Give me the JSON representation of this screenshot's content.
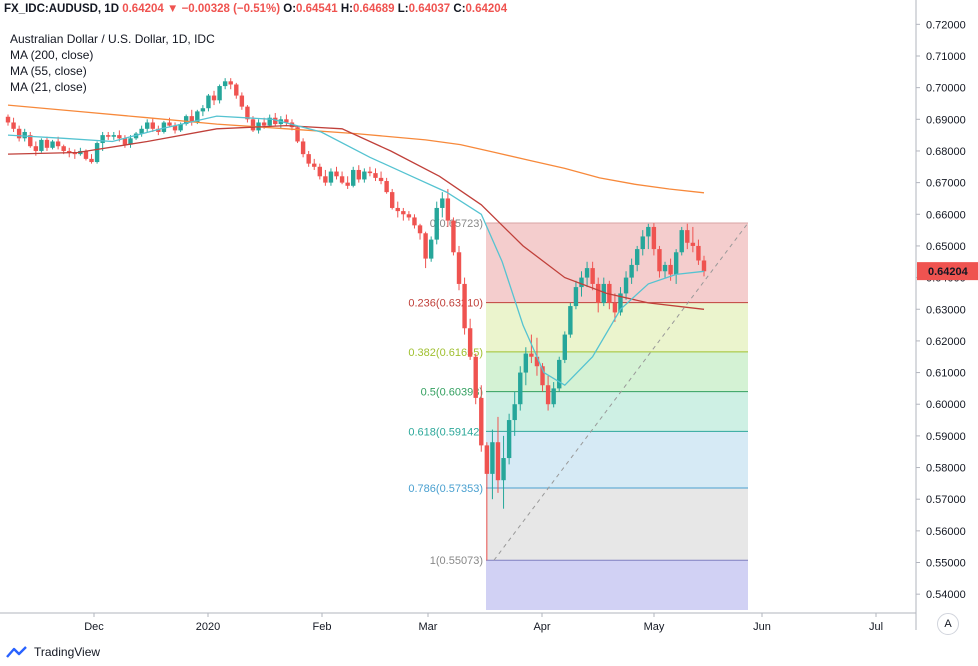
{
  "header": {
    "symbol": "FX_IDC:AUDUSD, 1D",
    "last": "0.64204",
    "arrow": "▼",
    "change": "−0.00328 (−0.51%)",
    "o_label": "O:",
    "o_value": "0.64541",
    "h_label": "H:",
    "h_value": "0.64689",
    "l_label": "L:",
    "l_value": "0.64037",
    "c_label": "C:",
    "c_value": "0.64204"
  },
  "legend": {
    "title": "Australian Dollar / U.S. Dollar, 1D, IDC",
    "ma200": "MA (200, close)",
    "ma55": "MA (55, close)",
    "ma21": "MA (21, close)"
  },
  "footer": {
    "brand": "TradingView",
    "auto_button": "A"
  },
  "colors": {
    "up": "#26a69a",
    "down": "#ef5350",
    "ma200": "#f7893b",
    "ma55": "#c0403a",
    "ma21": "#55c3d1",
    "price_label_bg": "#ef5350"
  },
  "chart_data": {
    "type": "candlestick",
    "ylim": [
      0.535,
      0.722
    ],
    "y_ticks": [
      "0.72000",
      "0.71000",
      "0.70000",
      "0.69000",
      "0.68000",
      "0.67000",
      "0.66000",
      "0.65000",
      "0.64000",
      "0.63000",
      "0.62000",
      "0.61000",
      "0.60000",
      "0.59000",
      "0.58000",
      "0.57000",
      "0.56000",
      "0.55000",
      "0.54000"
    ],
    "x_ticks": [
      "Dec",
      "2020",
      "Feb",
      "Mar",
      "Apr",
      "May",
      "Jun",
      "Jul"
    ],
    "last_price_label": "0.64204",
    "last_price": 0.64204,
    "fibonacci": {
      "levels": [
        {
          "label": "0(0.65723)",
          "value": 0.65723,
          "fill": "#f2c4c4",
          "line": "#d9a3a3",
          "color": "#888888"
        },
        {
          "label": "0.236(0.63210)",
          "value": 0.6321,
          "fill": "#e8f2c4",
          "line": "#c0403a",
          "color": "#c0403a"
        },
        {
          "label": "0.382(0.61655)",
          "value": 0.61655,
          "fill": "#ccf0cc",
          "line": "#a0c030",
          "color": "#a0c030"
        },
        {
          "label": "0.5(0.60398)",
          "value": 0.60398,
          "fill": "#c5eddf",
          "line": "#33a060",
          "color": "#33a060"
        },
        {
          "label": "0.618(0.59142)",
          "value": 0.59142,
          "fill": "#cfe6f3",
          "line": "#2ca89a",
          "color": "#2ca89a"
        },
        {
          "label": "0.786(0.57353)",
          "value": 0.57353,
          "fill": "#e3e3e3",
          "line": "#4aa0d0",
          "color": "#4aa0d0"
        },
        {
          "label": "1(0.55073)",
          "value": 0.55073,
          "fill": "#c9c9f2",
          "line": "#8080c0",
          "color": "#888888"
        }
      ]
    },
    "candles": [
      [
        0.6908,
        0.6915,
        0.688,
        0.689
      ],
      [
        0.689,
        0.6905,
        0.686,
        0.687
      ],
      [
        0.687,
        0.688,
        0.683,
        0.684
      ],
      [
        0.684,
        0.687,
        0.683,
        0.686
      ],
      [
        0.685,
        0.686,
        0.681,
        0.6815
      ],
      [
        0.6815,
        0.683,
        0.6785,
        0.68
      ],
      [
        0.68,
        0.684,
        0.6795,
        0.6835
      ],
      [
        0.6835,
        0.6845,
        0.68,
        0.681
      ],
      [
        0.681,
        0.6835,
        0.6805,
        0.683
      ],
      [
        0.683,
        0.6845,
        0.6805,
        0.6815
      ],
      [
        0.6815,
        0.682,
        0.679,
        0.68
      ],
      [
        0.68,
        0.681,
        0.678,
        0.6795
      ],
      [
        0.6795,
        0.6805,
        0.6775,
        0.679
      ],
      [
        0.679,
        0.681,
        0.6785,
        0.68
      ],
      [
        0.68,
        0.6805,
        0.677,
        0.6775
      ],
      [
        0.6775,
        0.679,
        0.676,
        0.6765
      ],
      [
        0.6765,
        0.683,
        0.676,
        0.6825
      ],
      [
        0.6825,
        0.686,
        0.68,
        0.685
      ],
      [
        0.685,
        0.686,
        0.6835,
        0.6845
      ],
      [
        0.6845,
        0.686,
        0.6835,
        0.685
      ],
      [
        0.685,
        0.6865,
        0.683,
        0.684
      ],
      [
        0.684,
        0.685,
        0.681,
        0.682
      ],
      [
        0.682,
        0.685,
        0.681,
        0.684
      ],
      [
        0.684,
        0.686,
        0.6835,
        0.6855
      ],
      [
        0.6855,
        0.688,
        0.6845,
        0.687
      ],
      [
        0.687,
        0.69,
        0.686,
        0.689
      ],
      [
        0.689,
        0.6905,
        0.686,
        0.687
      ],
      [
        0.687,
        0.688,
        0.685,
        0.686
      ],
      [
        0.686,
        0.6895,
        0.6855,
        0.689
      ],
      [
        0.689,
        0.6905,
        0.6875,
        0.688
      ],
      [
        0.688,
        0.689,
        0.6855,
        0.6865
      ],
      [
        0.6865,
        0.689,
        0.686,
        0.6885
      ],
      [
        0.6885,
        0.6915,
        0.688,
        0.691
      ],
      [
        0.691,
        0.693,
        0.688,
        0.689
      ],
      [
        0.689,
        0.693,
        0.6885,
        0.6925
      ],
      [
        0.6925,
        0.6945,
        0.691,
        0.6935
      ],
      [
        0.6935,
        0.698,
        0.6925,
        0.6975
      ],
      [
        0.6975,
        0.699,
        0.6945,
        0.696
      ],
      [
        0.696,
        0.701,
        0.695,
        0.7005
      ],
      [
        0.7005,
        0.703,
        0.6995,
        0.702
      ],
      [
        0.702,
        0.703,
        0.6995,
        0.701
      ],
      [
        0.701,
        0.7015,
        0.6965,
        0.6975
      ],
      [
        0.6975,
        0.6985,
        0.693,
        0.694
      ],
      [
        0.694,
        0.6945,
        0.689,
        0.69
      ],
      [
        0.69,
        0.691,
        0.686,
        0.6865
      ],
      [
        0.6865,
        0.69,
        0.6855,
        0.689
      ],
      [
        0.689,
        0.6905,
        0.687,
        0.688
      ],
      [
        0.688,
        0.6915,
        0.6875,
        0.6905
      ],
      [
        0.6905,
        0.692,
        0.688,
        0.6885
      ],
      [
        0.6885,
        0.691,
        0.687,
        0.69
      ],
      [
        0.69,
        0.6915,
        0.688,
        0.689
      ],
      [
        0.689,
        0.69,
        0.6865,
        0.6875
      ],
      [
        0.6875,
        0.688,
        0.6825,
        0.683
      ],
      [
        0.683,
        0.684,
        0.678,
        0.679
      ],
      [
        0.679,
        0.68,
        0.675,
        0.676
      ],
      [
        0.676,
        0.6775,
        0.674,
        0.675
      ],
      [
        0.675,
        0.676,
        0.671,
        0.672
      ],
      [
        0.672,
        0.674,
        0.669,
        0.67
      ],
      [
        0.67,
        0.6745,
        0.669,
        0.6735
      ],
      [
        0.6735,
        0.675,
        0.671,
        0.672
      ],
      [
        0.672,
        0.6735,
        0.6695,
        0.67
      ],
      [
        0.67,
        0.672,
        0.668,
        0.669
      ],
      [
        0.669,
        0.675,
        0.6685,
        0.674
      ],
      [
        0.674,
        0.6755,
        0.67,
        0.671
      ],
      [
        0.671,
        0.6745,
        0.67,
        0.6735
      ],
      [
        0.6735,
        0.675,
        0.672,
        0.673
      ],
      [
        0.673,
        0.6745,
        0.6705,
        0.6715
      ],
      [
        0.6715,
        0.6735,
        0.6695,
        0.6705
      ],
      [
        0.6705,
        0.6715,
        0.6665,
        0.667
      ],
      [
        0.667,
        0.668,
        0.6615,
        0.662
      ],
      [
        0.662,
        0.664,
        0.659,
        0.661
      ],
      [
        0.661,
        0.662,
        0.658,
        0.66
      ],
      [
        0.66,
        0.661,
        0.658,
        0.659
      ],
      [
        0.659,
        0.66,
        0.6555,
        0.6565
      ],
      [
        0.6565,
        0.657,
        0.652,
        0.654
      ],
      [
        0.654,
        0.6545,
        0.643,
        0.646
      ],
      [
        0.646,
        0.653,
        0.645,
        0.652
      ],
      [
        0.652,
        0.664,
        0.6505,
        0.662
      ],
      [
        0.662,
        0.667,
        0.659,
        0.665
      ],
      [
        0.665,
        0.668,
        0.656,
        0.658
      ],
      [
        0.658,
        0.659,
        0.647,
        0.648
      ],
      [
        0.648,
        0.65,
        0.636,
        0.638
      ],
      [
        0.638,
        0.64,
        0.622,
        0.624
      ],
      [
        0.624,
        0.627,
        0.614,
        0.615
      ],
      [
        0.615,
        0.616,
        0.6,
        0.602
      ],
      [
        0.602,
        0.606,
        0.585,
        0.587
      ],
      [
        0.587,
        0.588,
        0.5507,
        0.578
      ],
      [
        0.578,
        0.592,
        0.57,
        0.588
      ],
      [
        0.588,
        0.596,
        0.572,
        0.576
      ],
      [
        0.576,
        0.59,
        0.567,
        0.583
      ],
      [
        0.583,
        0.597,
        0.581,
        0.595
      ],
      [
        0.595,
        0.604,
        0.59,
        0.6
      ],
      [
        0.6,
        0.612,
        0.598,
        0.61
      ],
      [
        0.61,
        0.618,
        0.606,
        0.616
      ],
      [
        0.616,
        0.622,
        0.613,
        0.615
      ],
      [
        0.615,
        0.621,
        0.609,
        0.612
      ],
      [
        0.612,
        0.613,
        0.604,
        0.606
      ],
      [
        0.606,
        0.609,
        0.598,
        0.6
      ],
      [
        0.6,
        0.607,
        0.599,
        0.605
      ],
      [
        0.605,
        0.615,
        0.604,
        0.614
      ],
      [
        0.614,
        0.623,
        0.613,
        0.622
      ],
      [
        0.622,
        0.632,
        0.621,
        0.631
      ],
      [
        0.631,
        0.639,
        0.63,
        0.637
      ],
      [
        0.637,
        0.642,
        0.634,
        0.64
      ],
      [
        0.64,
        0.645,
        0.637,
        0.643
      ],
      [
        0.643,
        0.645,
        0.636,
        0.638
      ],
      [
        0.638,
        0.64,
        0.629,
        0.632
      ],
      [
        0.632,
        0.64,
        0.631,
        0.638
      ],
      [
        0.638,
        0.639,
        0.63,
        0.632
      ],
      [
        0.632,
        0.635,
        0.626,
        0.629
      ],
      [
        0.629,
        0.637,
        0.628,
        0.635
      ],
      [
        0.635,
        0.642,
        0.633,
        0.64
      ],
      [
        0.64,
        0.646,
        0.638,
        0.644
      ],
      [
        0.644,
        0.65,
        0.642,
        0.649
      ],
      [
        0.649,
        0.655,
        0.647,
        0.653
      ],
      [
        0.653,
        0.657,
        0.649,
        0.656
      ],
      [
        0.656,
        0.6572,
        0.647,
        0.649
      ],
      [
        0.649,
        0.65,
        0.64,
        0.642
      ],
      [
        0.642,
        0.645,
        0.64,
        0.644
      ],
      [
        0.644,
        0.646,
        0.639,
        0.641
      ],
      [
        0.641,
        0.649,
        0.638,
        0.648
      ],
      [
        0.648,
        0.656,
        0.647,
        0.655
      ],
      [
        0.655,
        0.657,
        0.649,
        0.651
      ],
      [
        0.651,
        0.656,
        0.648,
        0.65
      ],
      [
        0.65,
        0.652,
        0.644,
        0.6454
      ],
      [
        0.6454,
        0.6469,
        0.6404,
        0.642
      ]
    ],
    "ma200": [
      [
        0,
        0.6945
      ],
      [
        0.1,
        0.6925
      ],
      [
        0.2,
        0.6905
      ],
      [
        0.3,
        0.6885
      ],
      [
        0.4,
        0.687
      ],
      [
        0.5,
        0.6855
      ],
      [
        0.6,
        0.6835
      ],
      [
        0.65,
        0.682
      ],
      [
        0.7,
        0.6795
      ],
      [
        0.75,
        0.677
      ],
      [
        0.8,
        0.6745
      ],
      [
        0.85,
        0.6715
      ],
      [
        0.9,
        0.6695
      ],
      [
        0.95,
        0.668
      ],
      [
        1,
        0.6668
      ]
    ],
    "ma55": [
      [
        0,
        0.679
      ],
      [
        0.1,
        0.6795
      ],
      [
        0.2,
        0.683
      ],
      [
        0.3,
        0.687
      ],
      [
        0.4,
        0.688
      ],
      [
        0.48,
        0.687
      ],
      [
        0.55,
        0.68
      ],
      [
        0.62,
        0.672
      ],
      [
        0.68,
        0.663
      ],
      [
        0.74,
        0.65
      ],
      [
        0.8,
        0.64
      ],
      [
        0.86,
        0.635
      ],
      [
        0.92,
        0.632
      ],
      [
        1,
        0.63
      ]
    ],
    "ma21": [
      [
        0,
        0.685
      ],
      [
        0.08,
        0.684
      ],
      [
        0.15,
        0.683
      ],
      [
        0.22,
        0.687
      ],
      [
        0.3,
        0.691
      ],
      [
        0.38,
        0.69
      ],
      [
        0.45,
        0.686
      ],
      [
        0.52,
        0.678
      ],
      [
        0.58,
        0.672
      ],
      [
        0.63,
        0.667
      ],
      [
        0.68,
        0.66
      ],
      [
        0.71,
        0.645
      ],
      [
        0.74,
        0.625
      ],
      [
        0.77,
        0.61
      ],
      [
        0.8,
        0.606
      ],
      [
        0.84,
        0.615
      ],
      [
        0.88,
        0.63
      ],
      [
        0.92,
        0.638
      ],
      [
        0.96,
        0.641
      ],
      [
        1,
        0.642
      ]
    ]
  }
}
